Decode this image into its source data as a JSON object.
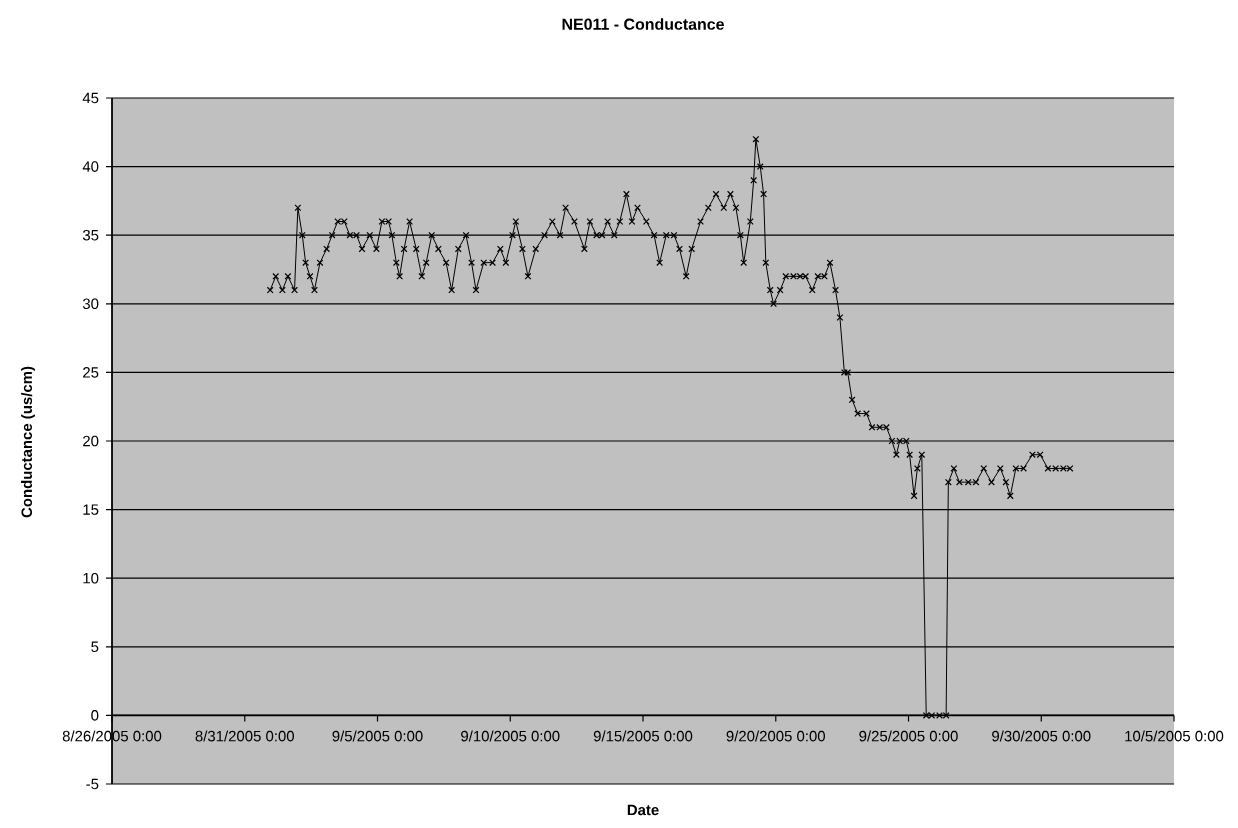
{
  "chart_data": {
    "type": "line",
    "title": "NE011 - Conductance",
    "xlabel": "Date",
    "ylabel": "Conductance (us/cm)",
    "xlim": [
      "2005-08-26T00:00",
      "2005-10-05T00:00"
    ],
    "xticks": [
      {
        "value": "2005-08-26T00:00",
        "label": "8/26/2005 0:00"
      },
      {
        "value": "2005-08-31T00:00",
        "label": "8/31/2005 0:00"
      },
      {
        "value": "2005-09-05T00:00",
        "label": "9/5/2005 0:00"
      },
      {
        "value": "2005-09-10T00:00",
        "label": "9/10/2005 0:00"
      },
      {
        "value": "2005-09-15T00:00",
        "label": "9/15/2005 0:00"
      },
      {
        "value": "2005-09-20T00:00",
        "label": "9/20/2005 0:00"
      },
      {
        "value": "2005-09-25T00:00",
        "label": "9/25/2005 0:00"
      },
      {
        "value": "2005-09-30T00:00",
        "label": "9/30/2005 0:00"
      },
      {
        "value": "2005-10-05T00:00",
        "label": "10/5/2005 0:00"
      }
    ],
    "ylim": [
      -5,
      45
    ],
    "yticks": [
      -5,
      0,
      5,
      10,
      15,
      20,
      25,
      30,
      35,
      40,
      45
    ],
    "grid": "y",
    "marker": "cross",
    "line_style": "solid",
    "series": [
      {
        "color": "#000000",
        "x": [
          "2005-08-31T23:00",
          "2005-09-01T04:00",
          "2005-09-01T10:00",
          "2005-09-01T15:00",
          "2005-09-01T21:00",
          "2005-09-02T00:00",
          "2005-09-02T04:00",
          "2005-09-02T07:00",
          "2005-09-02T11:00",
          "2005-09-02T15:00",
          "2005-09-02T20:00",
          "2005-09-03T02:00",
          "2005-09-03T07:00",
          "2005-09-03T12:00",
          "2005-09-03T18:00",
          "2005-09-03T23:00",
          "2005-09-04T05:00",
          "2005-09-04T10:00",
          "2005-09-04T17:00",
          "2005-09-04T23:00",
          "2005-09-05T04:00",
          "2005-09-05T10:00",
          "2005-09-05T13:00",
          "2005-09-05T17:00",
          "2005-09-05T20:00",
          "2005-09-06T00:00",
          "2005-09-06T05:00",
          "2005-09-06T11:00",
          "2005-09-06T16:00",
          "2005-09-06T20:00",
          "2005-09-07T01:00",
          "2005-09-07T07:00",
          "2005-09-07T14:00",
          "2005-09-07T19:00",
          "2005-09-08T01:00",
          "2005-09-08T08:00",
          "2005-09-08T13:00",
          "2005-09-08T17:00",
          "2005-09-09T00:00",
          "2005-09-09T08:00",
          "2005-09-09T15:00",
          "2005-09-09T20:00",
          "2005-09-10T02:00",
          "2005-09-10T05:00",
          "2005-09-10T11:00",
          "2005-09-10T16:00",
          "2005-09-10T23:00",
          "2005-09-11T07:00",
          "2005-09-11T14:00",
          "2005-09-11T21:00",
          "2005-09-12T02:00",
          "2005-09-12T10:00",
          "2005-09-12T19:00",
          "2005-09-13T00:00",
          "2005-09-13T06:00",
          "2005-09-13T11:00",
          "2005-09-13T16:00",
          "2005-09-13T22:00",
          "2005-09-14T03:00",
          "2005-09-14T09:00",
          "2005-09-14T14:00",
          "2005-09-14T19:00",
          "2005-09-15T03:00",
          "2005-09-15T10:00",
          "2005-09-15T15:00",
          "2005-09-15T21:00",
          "2005-09-16T04:00",
          "2005-09-16T09:00",
          "2005-09-16T15:00",
          "2005-09-16T20:00",
          "2005-09-17T04:00",
          "2005-09-17T11:00",
          "2005-09-17T18:00",
          "2005-09-18T01:00",
          "2005-09-18T07:00",
          "2005-09-18T12:00",
          "2005-09-18T16:00",
          "2005-09-18T19:00",
          "2005-09-19T01:00",
          "2005-09-19T04:00",
          "2005-09-19T06:00",
          "2005-09-19T10:00",
          "2005-09-19T13:00",
          "2005-09-19T15:00",
          "2005-09-19T19:00",
          "2005-09-19T22:00",
          "2005-09-20T04:00",
          "2005-09-20T09:00",
          "2005-09-20T16:00",
          "2005-09-20T22:00",
          "2005-09-21T03:00",
          "2005-09-21T09:00",
          "2005-09-21T14:00",
          "2005-09-21T20:00",
          "2005-09-22T01:00",
          "2005-09-22T06:00",
          "2005-09-22T10:00",
          "2005-09-22T14:00",
          "2005-09-22T17:00",
          "2005-09-22T21:00",
          "2005-09-23T02:00",
          "2005-09-23T10:00",
          "2005-09-23T15:00",
          "2005-09-23T22:00",
          "2005-09-24T04:00",
          "2005-09-24T09:00",
          "2005-09-24T13:00",
          "2005-09-24T16:00",
          "2005-09-24T22:00",
          "2005-09-25T01:00",
          "2005-09-25T05:00",
          "2005-09-25T08:00",
          "2005-09-25T12:00",
          "2005-09-25T16:00",
          "2005-09-25T21:00",
          "2005-09-26T04:00",
          "2005-09-26T10:00",
          "2005-09-26T12:00",
          "2005-09-26T17:00",
          "2005-09-26T22:00",
          "2005-09-27T06:00",
          "2005-09-27T13:00",
          "2005-09-27T20:00",
          "2005-09-28T03:00",
          "2005-09-28T11:00",
          "2005-09-28T16:00",
          "2005-09-28T20:00",
          "2005-09-29T01:00",
          "2005-09-29T08:00",
          "2005-09-29T16:00",
          "2005-09-29T23:00",
          "2005-09-30T06:00",
          "2005-09-30T13:00",
          "2005-09-30T20:00",
          "2005-10-01T02:00"
        ],
        "values": [
          31,
          32,
          31,
          32,
          31,
          37,
          35,
          33,
          32,
          31,
          33,
          34,
          35,
          36,
          36,
          35,
          35,
          34,
          35,
          34,
          36,
          36,
          35,
          33,
          32,
          34,
          36,
          34,
          32,
          33,
          35,
          34,
          33,
          31,
          34,
          35,
          33,
          31,
          33,
          33,
          34,
          33,
          35,
          36,
          34,
          32,
          34,
          35,
          36,
          35,
          37,
          36,
          34,
          36,
          35,
          35,
          36,
          35,
          36,
          38,
          36,
          37,
          36,
          35,
          33,
          35,
          35,
          34,
          32,
          34,
          36,
          37,
          38,
          37,
          38,
          37,
          35,
          33,
          36,
          39,
          42,
          40,
          38,
          33,
          31,
          30,
          31,
          32,
          32,
          32,
          32,
          31,
          32,
          32,
          33,
          31,
          29,
          25,
          25,
          23,
          22,
          22,
          21,
          21,
          21,
          20,
          19,
          20,
          20,
          19,
          16,
          18,
          19,
          0,
          0,
          0,
          0,
          17,
          18,
          17,
          17,
          17,
          18,
          17,
          18,
          17,
          16,
          18,
          18,
          19,
          19,
          18,
          18,
          18,
          18
        ]
      }
    ]
  }
}
